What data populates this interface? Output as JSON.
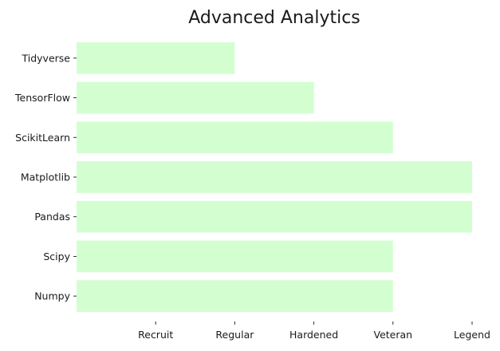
{
  "chart_data": {
    "type": "bar",
    "orientation": "horizontal",
    "title": "Advanced Analytics",
    "xlabel": "",
    "ylabel": "",
    "categories": [
      "Numpy",
      "Scipy",
      "Pandas",
      "Matplotlib",
      "ScikitLearn",
      "TensorFlow",
      "Tidyverse"
    ],
    "values": [
      4,
      4,
      5,
      5,
      4,
      3,
      2
    ],
    "xlim": [
      0,
      5
    ],
    "x_ticks": [
      1,
      2,
      3,
      4,
      5
    ],
    "x_tick_labels": [
      "Recruit",
      "Regular",
      "Hardened",
      "Veteran",
      "Legend"
    ],
    "bar_color": "#d3ffd0",
    "grid": false,
    "legend": "none"
  }
}
